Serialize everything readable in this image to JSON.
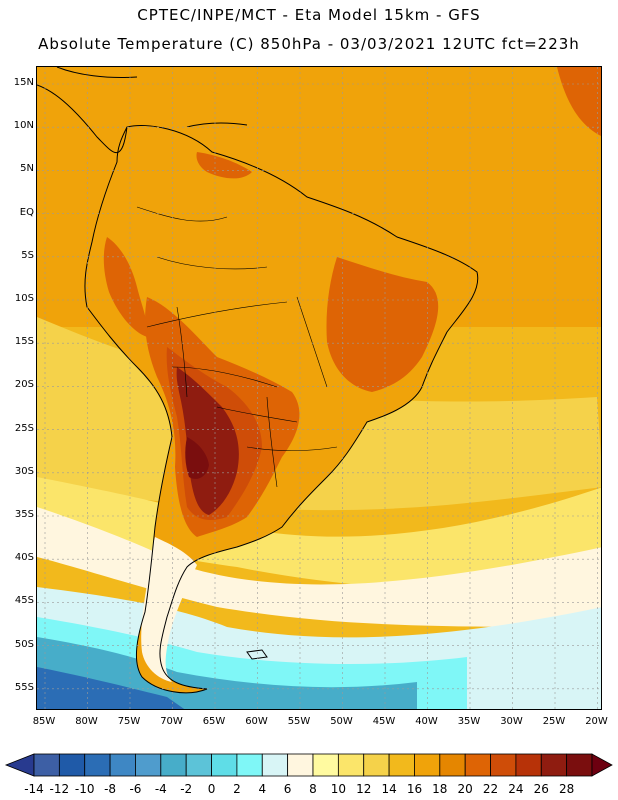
{
  "header": {
    "line1": "CPTEC/INPE/MCT -  Eta Model 15km - GFS",
    "line2": "Absolute Temperature (C) 850hPa - 03/03/2021 12UTC fct=223h"
  },
  "axes": {
    "lat_labels": [
      "15N",
      "10N",
      "5N",
      "EQ",
      "5S",
      "10S",
      "15S",
      "20S",
      "25S",
      "30S",
      "35S",
      "40S",
      "45S",
      "50S",
      "55S"
    ],
    "lon_labels": [
      "85W",
      "80W",
      "75W",
      "70W",
      "65W",
      "60W",
      "55W",
      "50W",
      "45W",
      "40W",
      "35W",
      "30W",
      "25W",
      "20W"
    ]
  },
  "colorbar": {
    "labels": [
      "-14",
      "-12",
      "-10",
      "-8",
      "-6",
      "-4",
      "-2",
      "0",
      "2",
      "4",
      "6",
      "8",
      "10",
      "12",
      "14",
      "16",
      "18",
      "20",
      "22",
      "24",
      "26",
      "28"
    ],
    "colors": [
      "#3d5fa5",
      "#1f5aa8",
      "#2b6db5",
      "#3e87c4",
      "#4f9ccd",
      "#47adc9",
      "#5cc3d8",
      "#5fdde7",
      "#7ff7f7",
      "#d8f5f6",
      "#fff6df",
      "#fffaa0",
      "#fbe56a",
      "#f5d24a",
      "#f2b91c",
      "#f0a30a",
      "#e58600",
      "#de6405",
      "#cf4d08",
      "#b73208",
      "#8f1c10",
      "#7a0e0e"
    ],
    "under_color": "#283a8f",
    "over_color": "#6d0010"
  },
  "map_colors": {
    "ocean_warm": "#f2b91c",
    "ocean_mild": "#f5d24a",
    "ocean_cool": "#fbe56a",
    "ocean_pale": "#fff6df",
    "ocean_cold1": "#d8f5f6",
    "ocean_cold2": "#7ff7f7",
    "ocean_cold3": "#47adc9",
    "ocean_cold4": "#2b6db5",
    "land_warm": "#f0a30a",
    "land_hot": "#de6405",
    "land_hotter": "#cf4d08",
    "land_hottest": "#8f1c10",
    "land_extreme": "#7a0e0e",
    "coast": "#000000",
    "grid": "#9a9a9a"
  }
}
